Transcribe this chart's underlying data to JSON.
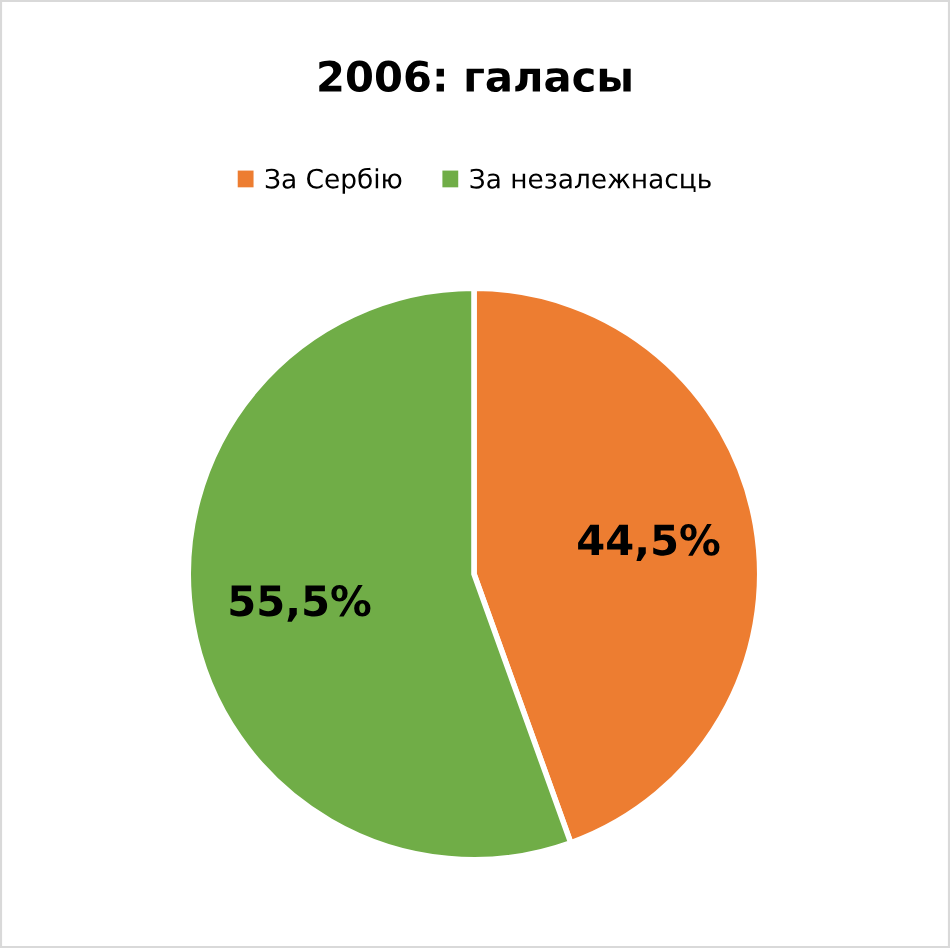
{
  "chart_data": {
    "type": "pie",
    "title": "2006: галасы",
    "categories": [
      "За Сербію",
      "За незалежнасць"
    ],
    "values": [
      44.5,
      55.5
    ],
    "colors": [
      "#ed7d31",
      "#70ad47"
    ],
    "value_labels": [
      "44,5%",
      "55,5%"
    ],
    "legend": "top"
  }
}
